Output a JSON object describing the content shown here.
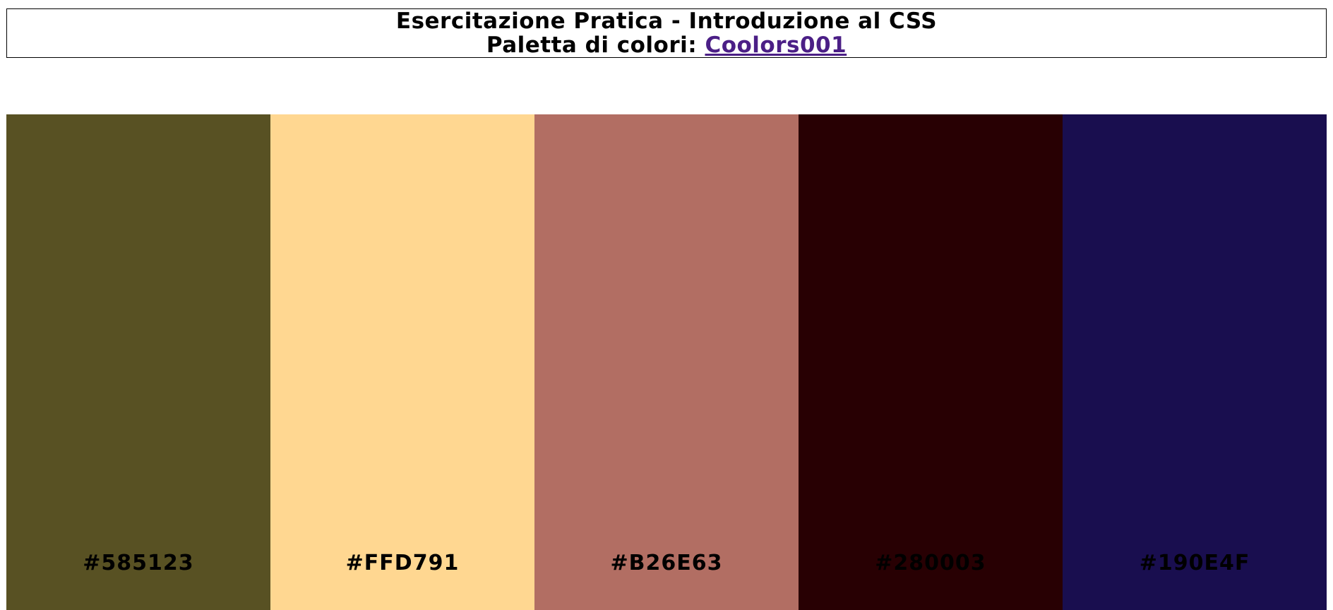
{
  "header": {
    "title": "Esercitazione Pratica - Introduzione al CSS",
    "subtitle_prefix": "Paletta di colori:",
    "palette_link": "Coolors001",
    "link_color": "#4b1f86"
  },
  "palette": {
    "swatches": [
      {
        "hex": "#585123",
        "label": "#585123"
      },
      {
        "hex": "#FFD791",
        "label": "#FFD791"
      },
      {
        "hex": "#B26E63",
        "label": "#B26E63"
      },
      {
        "hex": "#280003",
        "label": "#280003"
      },
      {
        "hex": "#190E4F",
        "label": "#190E4F"
      }
    ]
  }
}
